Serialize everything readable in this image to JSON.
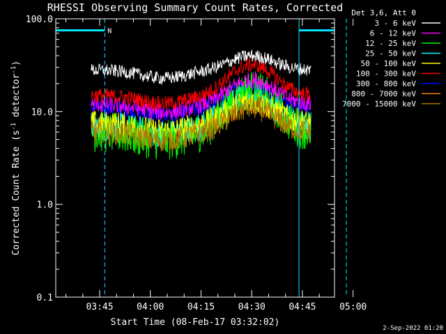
{
  "chart_data": {
    "type": "line",
    "title": "RHESSI Observing Summary Count Rates, Corrected",
    "xlabel": "Start Time (08-Feb-17 03:32:02)",
    "ylabel_prefix": "Corrected Count Rate (s",
    "ylabel_sup1": "-1",
    "ylabel_mid": " detector",
    "ylabel_sup2": "-1",
    "ylabel_suffix": ")",
    "y_scale": "log",
    "ylim": [
      0.1,
      100
    ],
    "y_ticks": [
      {
        "value": 0.1,
        "label": "0.1"
      },
      {
        "value": 1.0,
        "label": "1.0"
      },
      {
        "value": 10.0,
        "label": "10.0"
      },
      {
        "value": 100.0,
        "label": "100.0"
      }
    ],
    "xlim_minutes": [
      0,
      82.5
    ],
    "x_ticks": [
      {
        "minute": 13,
        "label": "03:45"
      },
      {
        "minute": 28,
        "label": "04:00"
      },
      {
        "minute": 43,
        "label": "04:15"
      },
      {
        "minute": 58,
        "label": "04:30"
      },
      {
        "minute": 73,
        "label": "04:45"
      },
      {
        "minute": 88,
        "label": "05:00"
      }
    ],
    "legend_title": "Det 3,6, Att 0",
    "legend_placement": "top-right, outside plot",
    "series": [
      {
        "name": "3 - 6 keV",
        "color": "#ffffff",
        "base": 28,
        "peak": 40,
        "noise": 0.07
      },
      {
        "name": "6 - 12 keV",
        "color": "#ff00ff",
        "base": 12,
        "peak": 22,
        "noise": 0.09
      },
      {
        "name": "12 - 25 keV",
        "color": "#00ff00",
        "base": 6,
        "peak": 17,
        "noise": 0.22
      },
      {
        "name": "25 - 50 keV",
        "color": "#00ffff",
        "base": 7,
        "peak": 15,
        "noise": 0.16
      },
      {
        "name": "50 - 100 keV",
        "color": "#ffff00",
        "base": 7.5,
        "peak": 13,
        "noise": 0.14
      },
      {
        "name": "100 - 300 keV",
        "color": "#ff0000",
        "base": 15,
        "peak": 32,
        "noise": 0.08
      },
      {
        "name": "300 - 800 keV",
        "color": "#0000ff",
        "base": 11,
        "peak": 19,
        "noise": 0.09
      },
      {
        "name": "800 - 7000 keV",
        "color": "#ff8800",
        "base": 6.5,
        "peak": 13,
        "noise": 0.14
      },
      {
        "name": "7000 - 15000 keV",
        "color": "#aa7700",
        "base": 6,
        "peak": 11,
        "noise": 0.13
      }
    ],
    "data_window_minutes": [
      10.5,
      75.5
    ],
    "flare_peak_minute": 58,
    "night_markers": [
      {
        "label": "N",
        "start_minute": 0,
        "end_minute": 14.5,
        "level": 75
      },
      {
        "label": "",
        "start_minute": 72,
        "end_minute": 86,
        "level": 75
      }
    ],
    "saa_lines_minutes": [
      0,
      14.5,
      72,
      86
    ],
    "footer_date": "2-Sep-2022 01:20"
  }
}
